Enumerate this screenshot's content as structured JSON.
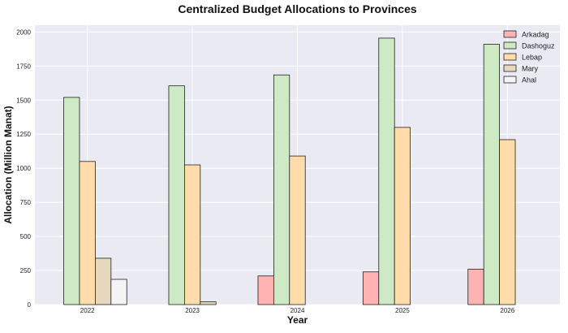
{
  "chart_data": {
    "type": "bar",
    "title": "Centralized Budget Allocations to Provinces",
    "xlabel": "Year",
    "ylabel": "Allocation (Million Manat)",
    "categories": [
      "2022",
      "2023",
      "2024",
      "2025",
      "2026"
    ],
    "ylim": [
      0,
      2050
    ],
    "yticks": [
      0,
      250,
      500,
      750,
      1000,
      1250,
      1500,
      1750,
      2000
    ],
    "grid": true,
    "legend_position": "top-right",
    "series": [
      {
        "name": "Arkadag",
        "color": "#ffb3b3",
        "values": [
          0,
          0,
          210,
          240,
          260
        ]
      },
      {
        "name": "Dashoguz",
        "color": "#cdeac4",
        "values": [
          1520,
          1605,
          1685,
          1955,
          1910
        ]
      },
      {
        "name": "Lebap",
        "color": "#ffdcaa",
        "values": [
          1050,
          1025,
          1090,
          1300,
          1210
        ]
      },
      {
        "name": "Mary",
        "color": "#e5d8bd",
        "values": [
          340,
          20,
          0,
          0,
          0
        ]
      },
      {
        "name": "Ahal",
        "color": "#f4f4f4",
        "values": [
          185,
          0,
          0,
          0,
          0
        ]
      }
    ]
  }
}
